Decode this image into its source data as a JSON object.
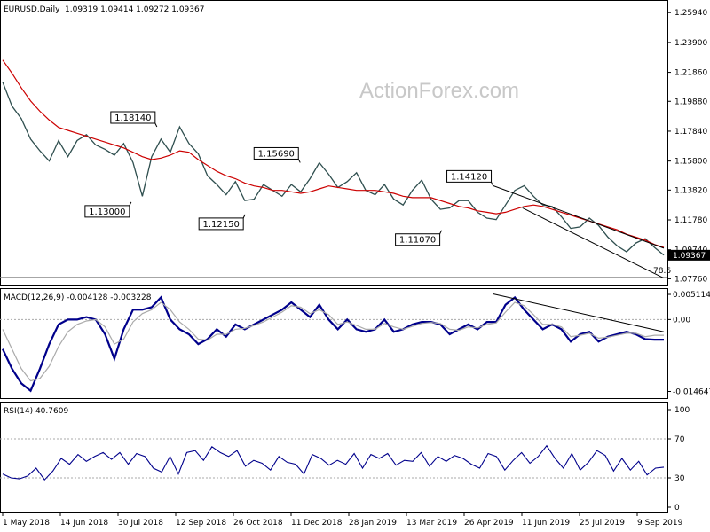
{
  "header": {
    "symbol": "EURUSD,Daily",
    "ohlc": "1.09319 1.09414 1.09272 1.09367",
    "macd": "MACD(12,26,9) -0.004128 -0.003228",
    "rsi": "RSI(14) 40.7609"
  },
  "watermark": "ActionForex.com",
  "colors": {
    "price": "#2f4f4f",
    "ma": "#cc0000",
    "macd": "#00008b",
    "signal": "#aaaaaa",
    "rsi": "#00008b",
    "current_tag": "#000000"
  },
  "chart_data": [
    {
      "type": "line",
      "panel": "price",
      "y_ticks": [
        "1.25940",
        "1.23900",
        "1.21860",
        "1.19880",
        "1.17840",
        "1.15800",
        "1.13820",
        "1.11780",
        "1.09740",
        "1.07760"
      ],
      "ylim": [
        1.0736,
        1.2674
      ],
      "current_price": "1.09367",
      "fib_label": "78.6",
      "annotations": [
        {
          "text": "1.18140",
          "date_index": 84,
          "value": 1.1814
        },
        {
          "text": "1.13000",
          "date_index": 70,
          "value": 1.13
        },
        {
          "text": "1.15690",
          "date_index": 162,
          "value": 1.1569
        },
        {
          "text": "1.12150",
          "date_index": 132,
          "value": 1.1215
        },
        {
          "text": "1.14120",
          "date_index": 267,
          "value": 1.1412
        },
        {
          "text": "1.11070",
          "date_index": 239,
          "value": 1.1107
        }
      ],
      "horizontal_lines": [
        1.0945,
        1.0786
      ],
      "series": [
        {
          "values": [
            1.212,
            1.1955,
            1.187,
            1.173,
            1.165,
            1.158,
            1.172,
            1.161,
            1.172,
            1.176,
            1.169,
            1.166,
            1.162,
            1.17,
            1.157,
            1.134,
            1.161,
            1.173,
            1.164,
            1.1814,
            1.17,
            1.163,
            1.148,
            1.142,
            1.135,
            1.144,
            1.131,
            1.132,
            1.142,
            1.138,
            1.134,
            1.142,
            1.137,
            1.146,
            1.1569,
            1.149,
            1.14,
            1.144,
            1.15,
            1.138,
            1.135,
            1.142,
            1.132,
            1.128,
            1.138,
            1.145,
            1.132,
            1.125,
            1.126,
            1.131,
            1.131,
            1.123,
            1.119,
            1.118,
            1.128,
            1.138,
            1.1412,
            1.134,
            1.128,
            1.127,
            1.12,
            1.112,
            1.113,
            1.119,
            1.114,
            1.106,
            1.1,
            1.096,
            1.102,
            1.105,
            1.099,
            1.0937
          ]
        },
        {
          "values": [
            1.227,
            1.218,
            1.208,
            1.199,
            1.192,
            1.186,
            1.181,
            1.179,
            1.177,
            1.175,
            1.173,
            1.171,
            1.169,
            1.167,
            1.164,
            1.161,
            1.159,
            1.16,
            1.162,
            1.165,
            1.164,
            1.159,
            1.155,
            1.151,
            1.148,
            1.146,
            1.143,
            1.141,
            1.14,
            1.138,
            1.138,
            1.137,
            1.136,
            1.137,
            1.139,
            1.141,
            1.14,
            1.139,
            1.138,
            1.138,
            1.138,
            1.137,
            1.136,
            1.134,
            1.133,
            1.133,
            1.133,
            1.131,
            1.129,
            1.127,
            1.126,
            1.124,
            1.123,
            1.122,
            1.123,
            1.125,
            1.127,
            1.128,
            1.127,
            1.125,
            1.123,
            1.121,
            1.119,
            1.117,
            1.115,
            1.113,
            1.111,
            1.108,
            1.106,
            1.104,
            1.101,
            1.099
          ]
        }
      ],
      "trendlines": [
        {
          "from": [
            267,
            1.1412
          ],
          "to": [
            360,
            1.0985
          ]
        },
        {
          "from": [
            283,
            1.126
          ],
          "to": [
            360,
            1.078
          ]
        }
      ]
    },
    {
      "type": "line",
      "panel": "macd",
      "title": "MACD(12,26,9) -0.004128 -0.003228",
      "y_ticks": [
        "0.005114",
        "0.00",
        "-0.014647"
      ],
      "ylim": [
        -0.016,
        0.0062
      ],
      "series": [
        {
          "values": [
            -0.006,
            -0.01,
            -0.013,
            -0.0145,
            -0.01,
            -0.005,
            -0.001,
            0.0,
            0.0,
            0.0005,
            0.0,
            -0.003,
            -0.008,
            -0.002,
            0.002,
            0.002,
            0.0025,
            0.0045,
            0.0,
            -0.002,
            -0.003,
            -0.005,
            -0.004,
            -0.002,
            -0.0035,
            -0.001,
            -0.002,
            -0.001,
            0.0,
            0.001,
            0.002,
            0.0035,
            0.002,
            0.0005,
            0.003,
            0.0,
            -0.002,
            0.0,
            -0.002,
            -0.0025,
            -0.002,
            0.0,
            -0.0025,
            -0.002,
            -0.001,
            -0.0005,
            -0.0005,
            -0.001,
            -0.003,
            -0.002,
            -0.001,
            -0.002,
            -0.0005,
            -0.0005,
            0.003,
            0.0045,
            0.002,
            0.0,
            -0.002,
            -0.001,
            -0.002,
            -0.0045,
            -0.003,
            -0.0025,
            -0.0045,
            -0.0035,
            -0.003,
            -0.0025,
            -0.003,
            -0.004,
            -0.0041,
            -0.0041
          ]
        },
        {
          "values": [
            -0.002,
            -0.006,
            -0.01,
            -0.0125,
            -0.012,
            -0.0095,
            -0.0055,
            -0.0025,
            -0.001,
            -0.0003,
            0.0,
            -0.0015,
            -0.005,
            -0.004,
            -0.0005,
            0.0012,
            0.002,
            0.0035,
            0.002,
            -0.0005,
            -0.002,
            -0.004,
            -0.0042,
            -0.003,
            -0.003,
            -0.002,
            -0.0018,
            -0.0012,
            -0.0005,
            0.0005,
            0.0015,
            0.0028,
            0.0025,
            0.0012,
            0.002,
            0.001,
            -0.001,
            -0.0005,
            -0.0012,
            -0.002,
            -0.002,
            -0.0008,
            -0.0015,
            -0.002,
            -0.0014,
            -0.0008,
            -0.0006,
            -0.0008,
            -0.002,
            -0.0022,
            -0.0015,
            -0.0017,
            -0.001,
            -0.0007,
            0.0015,
            0.0035,
            0.0028,
            0.001,
            -0.001,
            -0.001,
            -0.0015,
            -0.0035,
            -0.0032,
            -0.0028,
            -0.0038,
            -0.0036,
            -0.0032,
            -0.0028,
            -0.0028,
            -0.0035,
            -0.0032,
            -0.0032
          ]
        }
      ],
      "trendline": {
        "from": [
          267,
          0.0052
        ],
        "to": [
          360,
          -0.0025
        ]
      }
    },
    {
      "type": "line",
      "panel": "rsi",
      "title": "RSI(14) 40.7609",
      "y_ticks": [
        "100",
        "70",
        "30",
        "0"
      ],
      "ylim": [
        0,
        100
      ],
      "levels": [
        70,
        30
      ],
      "series": [
        {
          "values": [
            34,
            30,
            29,
            32,
            40,
            28,
            37,
            50,
            44,
            54,
            47,
            52,
            56,
            49,
            56,
            44,
            55,
            52,
            40,
            36,
            52,
            34,
            56,
            58,
            48,
            62,
            56,
            52,
            58,
            42,
            48,
            45,
            38,
            52,
            46,
            44,
            34,
            54,
            50,
            43,
            48,
            44,
            55,
            40,
            54,
            50,
            55,
            43,
            48,
            47,
            56,
            42,
            52,
            47,
            53,
            50,
            44,
            40,
            55,
            52,
            38,
            48,
            56,
            45,
            52,
            63,
            50,
            40,
            55,
            38,
            46,
            58,
            53,
            37,
            50,
            38,
            47,
            33,
            40,
            41
          ]
        }
      ]
    }
  ],
  "x_axis": {
    "labels": [
      "1 May 2018",
      "14 Jun 2018",
      "30 Jul 2018",
      "12 Sep 2018",
      "26 Oct 2018",
      "11 Dec 2018",
      "28 Jan 2019",
      "13 Mar 2019",
      "26 Apr 2019",
      "11 Jun 2019",
      "25 Jul 2019",
      "9 Sep 2019"
    ]
  }
}
